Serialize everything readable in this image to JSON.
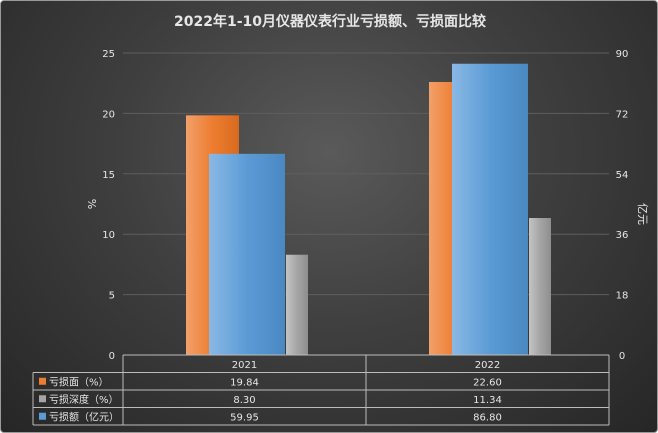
{
  "chart_data": {
    "type": "bar",
    "title": "2022年1-10月仪器仪表行业亏损额、亏损面比较",
    "categories": [
      "2021",
      "2022"
    ],
    "series": [
      {
        "name": "亏损面（%）",
        "values": [
          19.84,
          22.6
        ],
        "color": "#ED7D31",
        "axis": "left"
      },
      {
        "name": "亏损深度（%）",
        "values": [
          8.3,
          11.34
        ],
        "color": "#A5A5A5",
        "axis": "left"
      },
      {
        "name": "亏损额（亿元）",
        "values": [
          59.95,
          86.8
        ],
        "color": "#5B9BD5",
        "axis": "right"
      }
    ],
    "table_values": [
      [
        "19.84",
        "22.60"
      ],
      [
        "8.30",
        "11.34"
      ],
      [
        "59.95",
        "86.80"
      ]
    ],
    "ylabel": "%",
    "ylabel_right": "亿元",
    "ylim": [
      0,
      25
    ],
    "ylim_right": [
      0,
      90
    ],
    "yticks": [
      "0",
      "5",
      "10",
      "15",
      "20",
      "25"
    ],
    "yticks_right": [
      "0",
      "18",
      "36",
      "54",
      "72",
      "90"
    ],
    "grid": true,
    "legend": "data-table"
  }
}
